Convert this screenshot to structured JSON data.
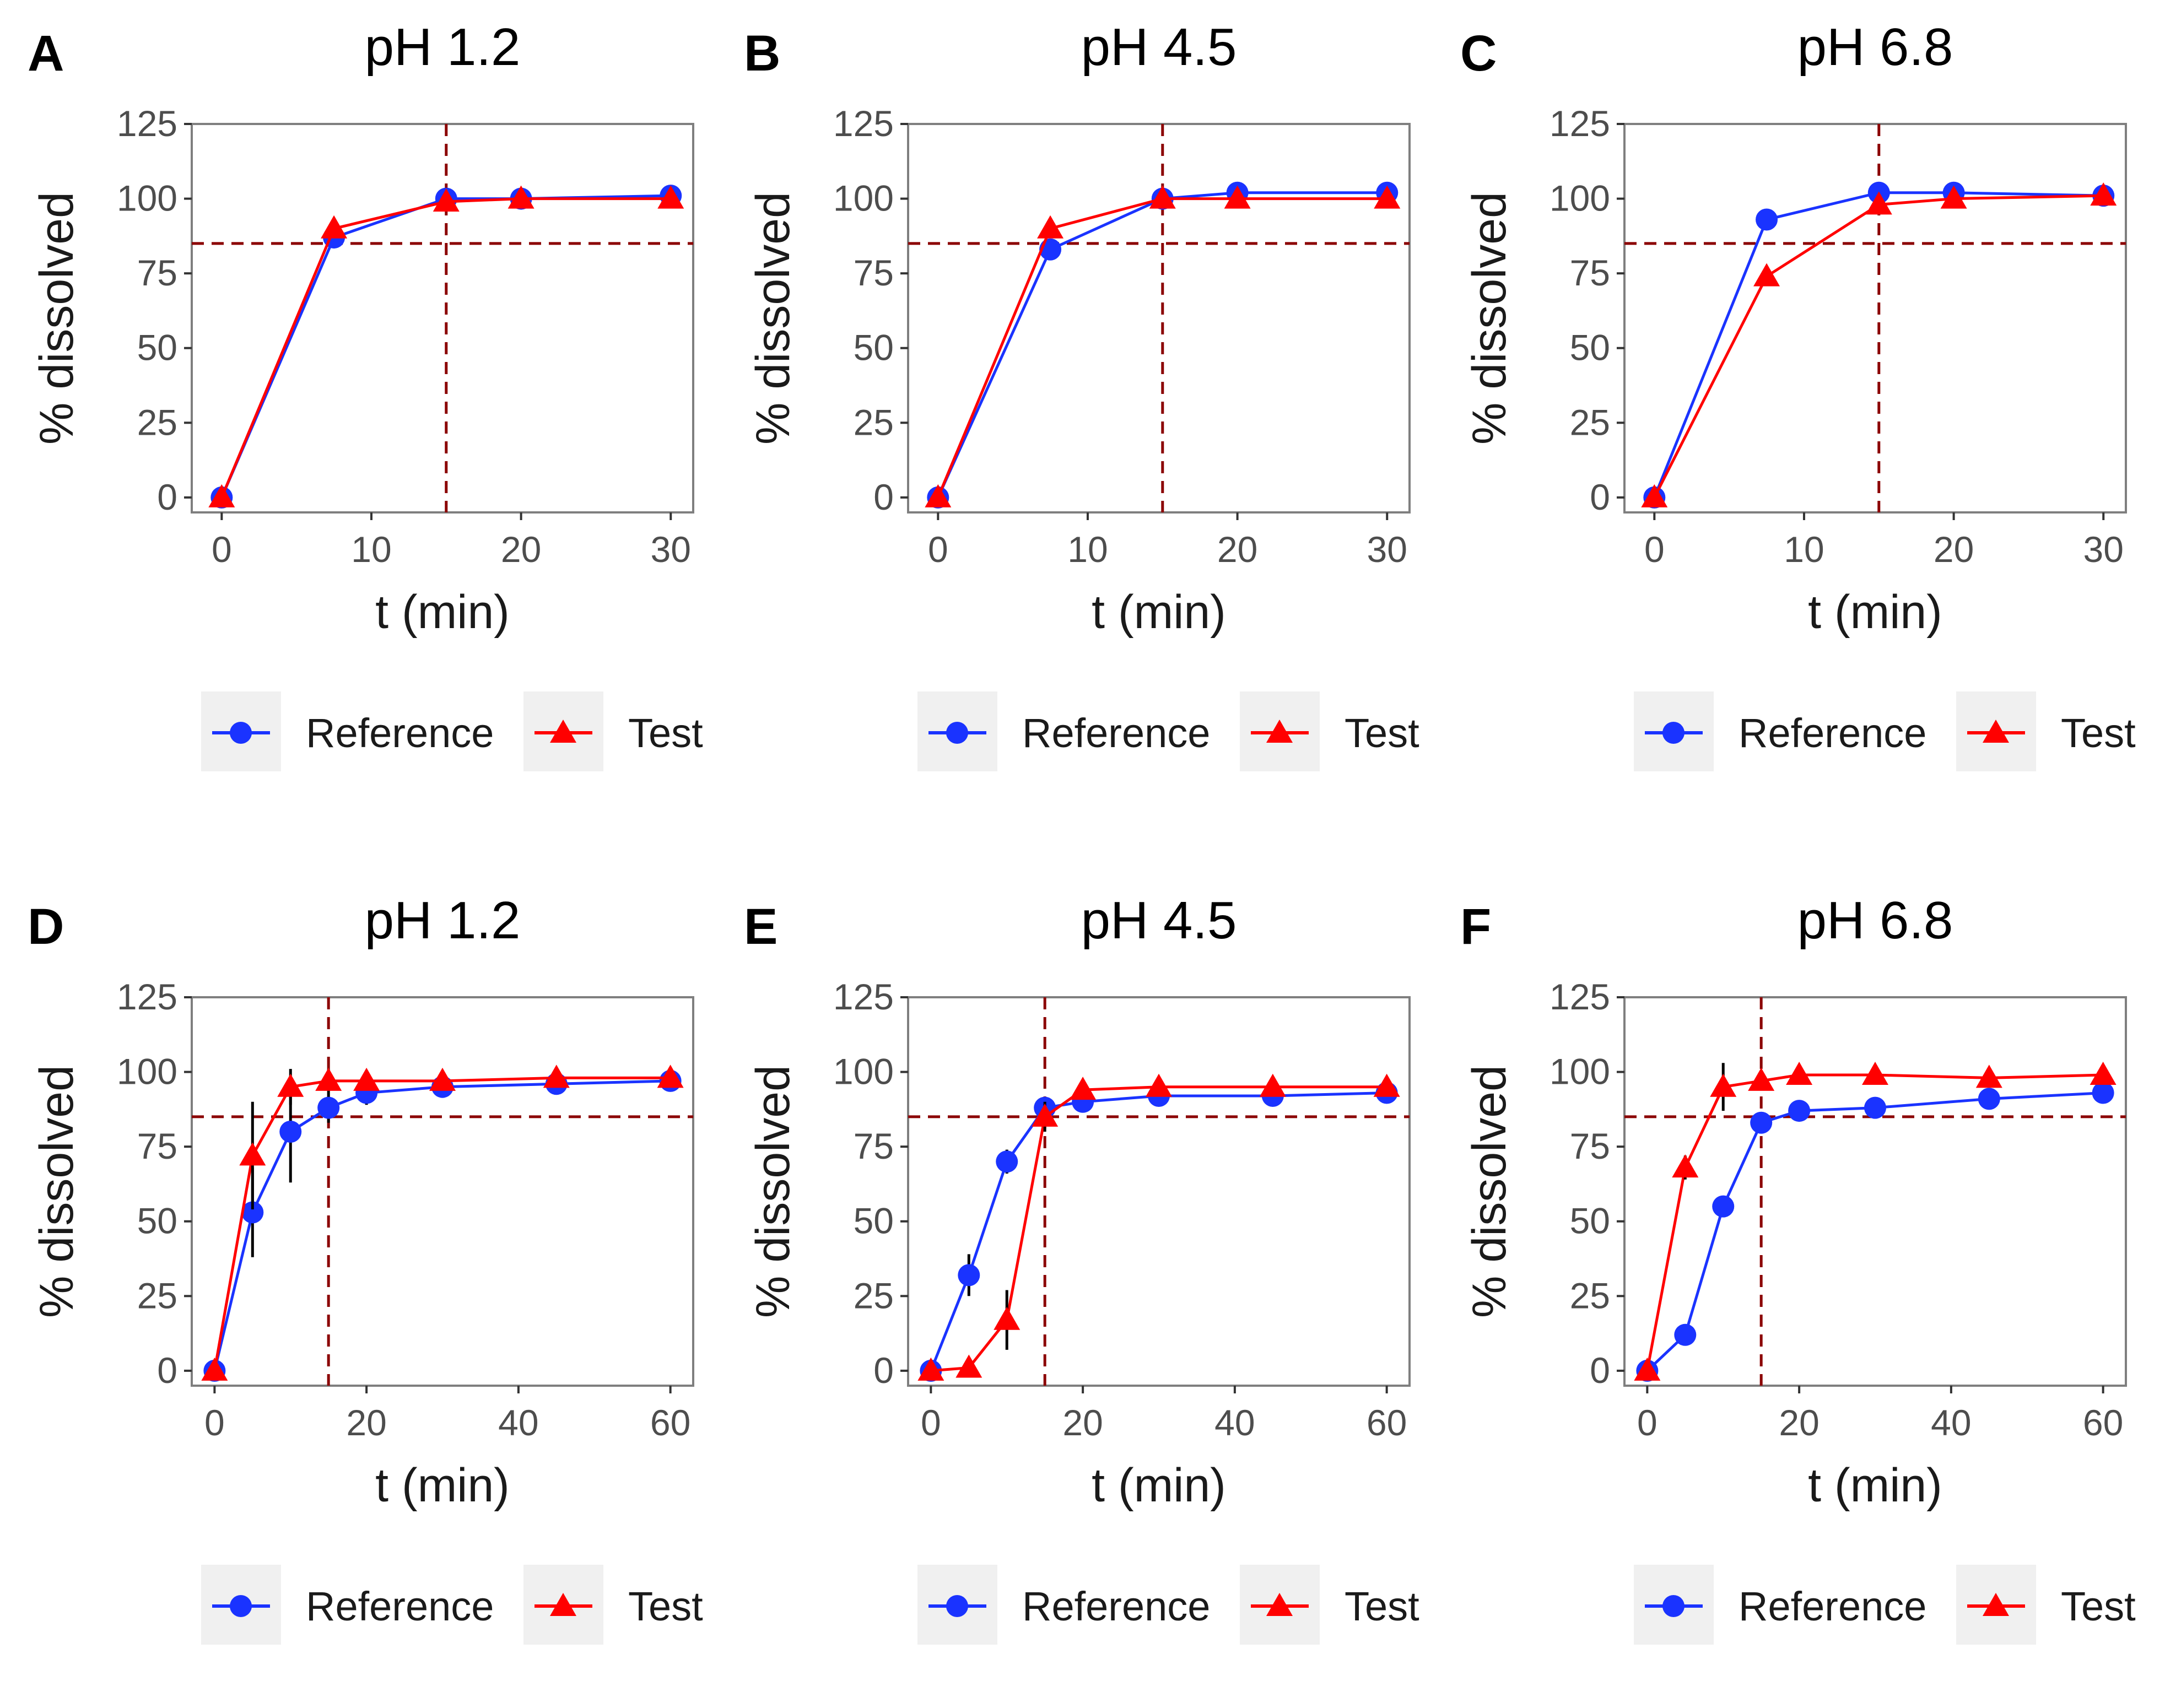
{
  "chart_data": [
    {
      "panel": "A",
      "title": "pH 1.2",
      "type": "line",
      "xlabel": "t (min)",
      "ylabel": "% dissolved",
      "xlim": [
        -2,
        31.5
      ],
      "ylim": [
        -5,
        125
      ],
      "xticks": [
        "0",
        "10",
        "20",
        "30"
      ],
      "xtick_values": [
        0,
        10,
        20,
        30
      ],
      "yticks": [
        "0",
        "25",
        "50",
        "75",
        "100",
        "125"
      ],
      "ytick_values": [
        0,
        25,
        50,
        75,
        100,
        125
      ],
      "hline": 85,
      "vline": 15,
      "series": [
        {
          "name": "Reference",
          "color": "#1a33ff",
          "marker": "circle",
          "x": [
            0,
            7.5,
            15,
            20,
            30
          ],
          "values": [
            0,
            87,
            100,
            100,
            101
          ],
          "err": [
            0,
            2,
            2,
            2,
            2
          ]
        },
        {
          "name": "Test",
          "color": "#ff0000",
          "marker": "triangle",
          "x": [
            0,
            7.5,
            15,
            20,
            30
          ],
          "values": [
            0,
            90,
            99,
            100,
            100
          ],
          "err": [
            0,
            2,
            2,
            2,
            2
          ]
        }
      ],
      "legend": [
        "Reference",
        "Test"
      ]
    },
    {
      "panel": "B",
      "title": "pH 4.5",
      "type": "line",
      "xlabel": "t (min)",
      "ylabel": "% dissolved",
      "xlim": [
        -2,
        31.5
      ],
      "ylim": [
        -5,
        125
      ],
      "xticks": [
        "0",
        "10",
        "20",
        "30"
      ],
      "xtick_values": [
        0,
        10,
        20,
        30
      ],
      "yticks": [
        "0",
        "25",
        "50",
        "75",
        "100",
        "125"
      ],
      "ytick_values": [
        0,
        25,
        50,
        75,
        100,
        125
      ],
      "hline": 85,
      "vline": 15,
      "series": [
        {
          "name": "Reference",
          "color": "#1a33ff",
          "marker": "circle",
          "x": [
            0,
            7.5,
            15,
            20,
            30
          ],
          "values": [
            0,
            83,
            100,
            102,
            102
          ],
          "err": [
            0,
            2,
            2,
            2,
            2
          ]
        },
        {
          "name": "Test",
          "color": "#ff0000",
          "marker": "triangle",
          "x": [
            0,
            7.5,
            15,
            20,
            30
          ],
          "values": [
            0,
            90,
            100,
            100,
            100
          ],
          "err": [
            0,
            2,
            2,
            2,
            2
          ]
        }
      ],
      "legend": [
        "Reference",
        "Test"
      ]
    },
    {
      "panel": "C",
      "title": "pH 6.8",
      "type": "line",
      "xlabel": "t (min)",
      "ylabel": "% dissolved",
      "xlim": [
        -2,
        31.5
      ],
      "ylim": [
        -5,
        125
      ],
      "xticks": [
        "0",
        "10",
        "20",
        "30"
      ],
      "xtick_values": [
        0,
        10,
        20,
        30
      ],
      "yticks": [
        "0",
        "25",
        "50",
        "75",
        "100",
        "125"
      ],
      "ytick_values": [
        0,
        25,
        50,
        75,
        100,
        125
      ],
      "hline": 85,
      "vline": 15,
      "series": [
        {
          "name": "Reference",
          "color": "#1a33ff",
          "marker": "circle",
          "x": [
            0,
            7.5,
            15,
            20,
            30
          ],
          "values": [
            0,
            93,
            102,
            102,
            101
          ],
          "err": [
            0,
            2,
            2,
            2,
            2
          ]
        },
        {
          "name": "Test",
          "color": "#ff0000",
          "marker": "triangle",
          "x": [
            0,
            7.5,
            15,
            20,
            30
          ],
          "values": [
            0,
            74,
            98,
            100,
            101
          ],
          "err": [
            0,
            2,
            3,
            2,
            2
          ]
        }
      ],
      "legend": [
        "Reference",
        "Test"
      ]
    },
    {
      "panel": "D",
      "title": "pH 1.2",
      "type": "line",
      "xlabel": "t (min)",
      "ylabel": "% dissolved",
      "xlim": [
        -3,
        63
      ],
      "ylim": [
        -5,
        125
      ],
      "xticks": [
        "0",
        "20",
        "40",
        "60"
      ],
      "xtick_values": [
        0,
        20,
        40,
        60
      ],
      "yticks": [
        "0",
        "25",
        "50",
        "75",
        "100",
        "125"
      ],
      "ytick_values": [
        0,
        25,
        50,
        75,
        100,
        125
      ],
      "hline": 85,
      "vline": 15,
      "series": [
        {
          "name": "Reference",
          "color": "#1a33ff",
          "marker": "circle",
          "x": [
            0,
            5,
            10,
            15,
            20,
            30,
            45,
            60
          ],
          "values": [
            0,
            53,
            80,
            88,
            93,
            95,
            96,
            97
          ],
          "err": [
            0,
            15,
            17,
            5,
            4,
            3,
            3,
            2
          ]
        },
        {
          "name": "Test",
          "color": "#ff0000",
          "marker": "triangle",
          "x": [
            0,
            5,
            10,
            15,
            20,
            30,
            45,
            60
          ],
          "values": [
            0,
            72,
            95,
            97,
            97,
            97,
            98,
            98
          ],
          "err": [
            0,
            18,
            6,
            4,
            3,
            3,
            3,
            2
          ]
        }
      ],
      "legend": [
        "Reference",
        "Test"
      ]
    },
    {
      "panel": "E",
      "title": "pH 4.5",
      "type": "line",
      "xlabel": "t (min)",
      "ylabel": "% dissolved",
      "xlim": [
        -3,
        63
      ],
      "ylim": [
        -5,
        125
      ],
      "xticks": [
        "0",
        "20",
        "40",
        "60"
      ],
      "xtick_values": [
        0,
        20,
        40,
        60
      ],
      "yticks": [
        "0",
        "25",
        "50",
        "75",
        "100",
        "125"
      ],
      "ytick_values": [
        0,
        25,
        50,
        75,
        100,
        125
      ],
      "hline": 85,
      "vline": 15,
      "series": [
        {
          "name": "Reference",
          "color": "#1a33ff",
          "marker": "circle",
          "x": [
            0,
            5,
            10,
            15,
            20,
            30,
            45,
            60
          ],
          "values": [
            0,
            32,
            70,
            88,
            90,
            92,
            92,
            93
          ],
          "err": [
            0,
            7,
            4,
            3,
            3,
            3,
            3,
            3
          ]
        },
        {
          "name": "Test",
          "color": "#ff0000",
          "marker": "triangle",
          "x": [
            0,
            5,
            10,
            15,
            20,
            30,
            45,
            60
          ],
          "values": [
            0,
            1,
            17,
            85,
            94,
            95,
            95,
            95
          ],
          "err": [
            0,
            2,
            10,
            5,
            3,
            3,
            3,
            3
          ]
        }
      ],
      "legend": [
        "Reference",
        "Test"
      ]
    },
    {
      "panel": "F",
      "title": "pH 6.8",
      "type": "line",
      "xlabel": "t (min)",
      "ylabel": "% dissolved",
      "xlim": [
        -3,
        63
      ],
      "ylim": [
        -5,
        125
      ],
      "xticks": [
        "0",
        "20",
        "40",
        "60"
      ],
      "xtick_values": [
        0,
        20,
        40,
        60
      ],
      "yticks": [
        "0",
        "25",
        "50",
        "75",
        "100",
        "125"
      ],
      "ytick_values": [
        0,
        25,
        50,
        75,
        100,
        125
      ],
      "hline": 85,
      "vline": 15,
      "series": [
        {
          "name": "Reference",
          "color": "#1a33ff",
          "marker": "circle",
          "x": [
            0,
            5,
            10,
            15,
            20,
            30,
            45,
            60
          ],
          "values": [
            0,
            12,
            55,
            83,
            87,
            88,
            91,
            93
          ],
          "err": [
            0,
            2,
            3,
            3,
            2,
            2,
            2,
            2
          ]
        },
        {
          "name": "Test",
          "color": "#ff0000",
          "marker": "triangle",
          "x": [
            0,
            5,
            10,
            15,
            20,
            30,
            45,
            60
          ],
          "values": [
            0,
            68,
            95,
            97,
            99,
            99,
            98,
            99
          ],
          "err": [
            0,
            4,
            8,
            3,
            3,
            2,
            2,
            2
          ]
        }
      ],
      "legend": [
        "Reference",
        "Test"
      ]
    }
  ],
  "colors": {
    "reference": "#1a33ff",
    "test": "#ff0000",
    "guide": "#8b0000",
    "panel_border": "#7f7f7f",
    "legend_key_bg": "#f0f0f0"
  }
}
